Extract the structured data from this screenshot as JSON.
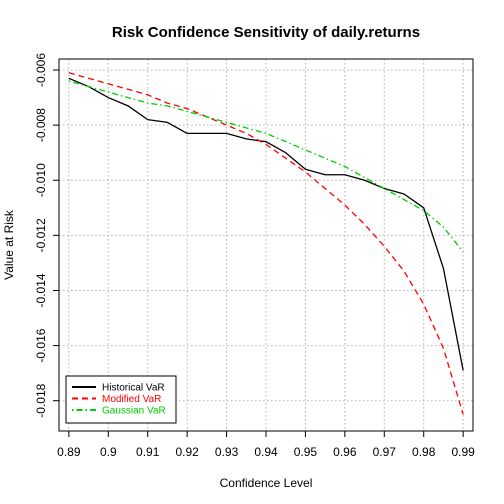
{
  "chart_data": {
    "type": "line",
    "title": "Risk Confidence Sensitivity of daily.returns",
    "xlabel": "Confidence Level",
    "ylabel": "Value at Risk",
    "xlim": [
      0.8875,
      0.9925
    ],
    "ylim": [
      -0.0191,
      -0.0056
    ],
    "x_ticks": [
      0.89,
      0.9,
      0.91,
      0.92,
      0.93,
      0.94,
      0.95,
      0.96,
      0.97,
      0.98,
      0.99
    ],
    "x_tick_labels": [
      "0.89",
      "0.9",
      "0.91",
      "0.92",
      "0.93",
      "0.94",
      "0.95",
      "0.96",
      "0.97",
      "0.98",
      "0.99"
    ],
    "y_ticks": [
      -0.006,
      -0.008,
      -0.01,
      -0.012,
      -0.014,
      -0.016,
      -0.018
    ],
    "y_tick_labels": [
      "-0.006",
      "-0.008",
      "-0.010",
      "-0.012",
      "-0.014",
      "-0.016",
      "-0.018"
    ],
    "grid": true,
    "legend_position": "bottom-left",
    "x": [
      0.89,
      0.895,
      0.9,
      0.905,
      0.91,
      0.915,
      0.92,
      0.925,
      0.93,
      0.935,
      0.94,
      0.945,
      0.95,
      0.955,
      0.96,
      0.965,
      0.97,
      0.975,
      0.98,
      0.985,
      0.99
    ],
    "series": [
      {
        "name": "Historical VaR",
        "color": "#000000",
        "dash": "solid",
        "values": [
          -0.0063,
          -0.0066,
          -0.007,
          -0.0073,
          -0.0078,
          -0.0079,
          -0.0083,
          -0.0083,
          -0.0083,
          -0.0085,
          -0.0086,
          -0.009,
          -0.0096,
          -0.0098,
          -0.0098,
          -0.01,
          -0.0103,
          -0.0105,
          -0.011,
          -0.0132,
          -0.0169
        ]
      },
      {
        "name": "Modified VaR",
        "color": "#ff0000",
        "dash": "dashed",
        "values": [
          -0.0061,
          -0.0063,
          -0.0065,
          -0.0067,
          -0.0069,
          -0.0072,
          -0.0074,
          -0.0077,
          -0.008,
          -0.0083,
          -0.0087,
          -0.0092,
          -0.0097,
          -0.0103,
          -0.0109,
          -0.0116,
          -0.0124,
          -0.0133,
          -0.0145,
          -0.0161,
          -0.0185
        ]
      },
      {
        "name": "Gaussian VaR",
        "color": "#00cd00",
        "dash": "dotdash",
        "values": [
          -0.0064,
          -0.0066,
          -0.0068,
          -0.007,
          -0.0072,
          -0.0073,
          -0.0075,
          -0.0077,
          -0.0079,
          -0.0081,
          -0.0083,
          -0.0086,
          -0.0089,
          -0.0092,
          -0.0095,
          -0.0099,
          -0.0103,
          -0.0107,
          -0.0111,
          -0.0117,
          -0.0126
        ]
      }
    ]
  }
}
